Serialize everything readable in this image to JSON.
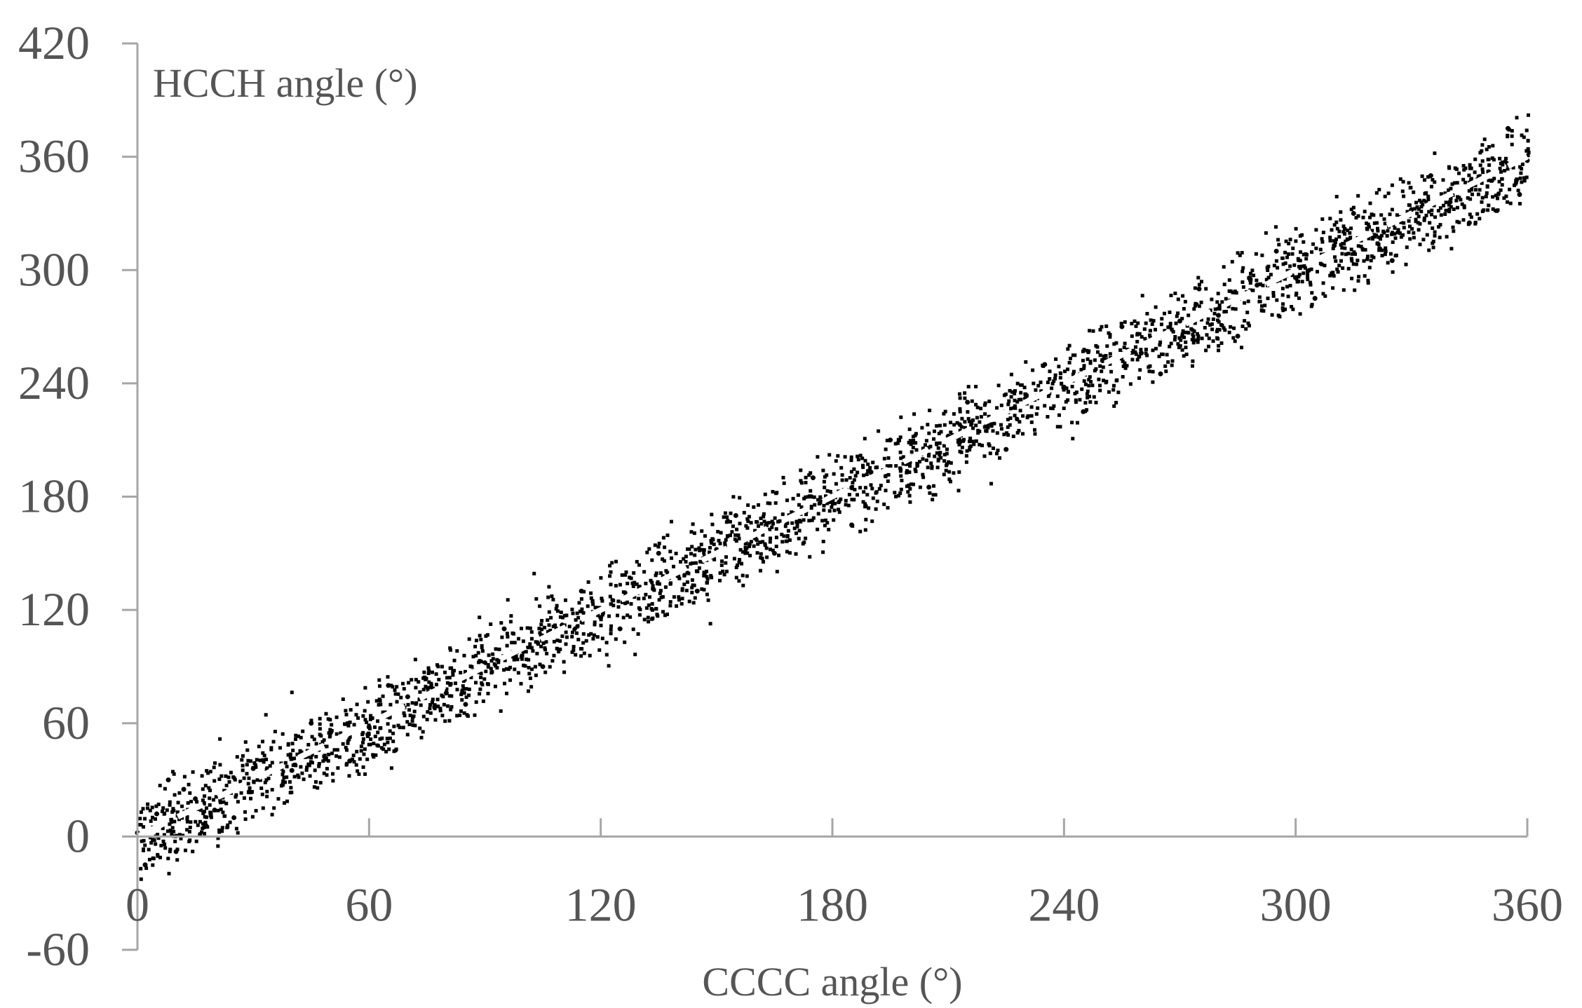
{
  "chart_data": {
    "type": "scatter",
    "xlabel": "CCCC angle (°)",
    "ylabel": "HCCH angle (°)",
    "xlim": [
      0,
      360
    ],
    "ylim": [
      -60,
      420
    ],
    "x_ticks": [
      "0",
      "60",
      "120",
      "180",
      "240",
      "300",
      "360"
    ],
    "y_ticks": [
      "420",
      "360",
      "300",
      "240",
      "180",
      "120",
      "60",
      "0",
      "-60"
    ],
    "grid": false,
    "point_color": "#000000",
    "trend_color": "#ffffff",
    "series": [
      {
        "marker": "point",
        "x": [
          0,
          5,
          10,
          15,
          20,
          30,
          40,
          50,
          60,
          70,
          80,
          90,
          100,
          110,
          120,
          130,
          140,
          150,
          160,
          170,
          180,
          190,
          200,
          210,
          220,
          230,
          240,
          250,
          260,
          270,
          280,
          290,
          300,
          310,
          320,
          330,
          340,
          350,
          360,
          2,
          8,
          12,
          25,
          45,
          55,
          65,
          85,
          95,
          105,
          115,
          125,
          135,
          145,
          155,
          165,
          175,
          185,
          195,
          205,
          215,
          225,
          235,
          245,
          255,
          265,
          275,
          285,
          295,
          305,
          315,
          325,
          335,
          345,
          355,
          358
        ],
        "y": [
          2,
          12,
          -8,
          20,
          14,
          36,
          35,
          55,
          58,
          74,
          76,
          92,
          98,
          112,
          116,
          132,
          138,
          152,
          158,
          171,
          178,
          193,
          198,
          212,
          218,
          232,
          238,
          252,
          256,
          273,
          276,
          292,
          296,
          313,
          318,
          332,
          336,
          352,
          358,
          -15,
          30,
          25,
          10,
          60,
          40,
          80,
          70,
          110,
          90,
          130,
          110,
          150,
          130,
          170,
          150,
          190,
          165,
          210,
          185,
          230,
          205,
          250,
          225,
          270,
          245,
          290,
          265,
          310,
          285,
          330,
          305,
          350,
          325,
          375,
          340
        ]
      }
    ],
    "trend_line": {
      "x": [
        0,
        360
      ],
      "y": [
        0,
        360
      ],
      "style": "dashed"
    }
  }
}
